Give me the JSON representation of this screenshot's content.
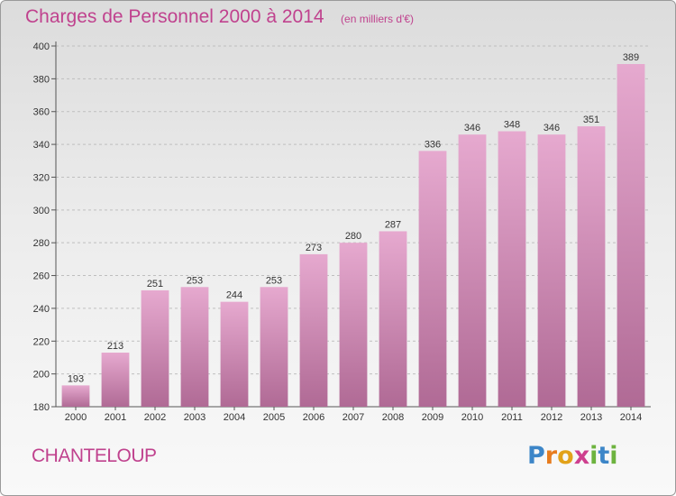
{
  "header": {
    "title": "Charges de Personnel 2000 à 2014",
    "subtitle": "(en milliers d'€)"
  },
  "footer": {
    "place": "CHANTELOUP",
    "logo_letters": [
      "P",
      "r",
      "o",
      "x",
      "i",
      "t",
      "i"
    ]
  },
  "colors": {
    "bar_top": "#e6a9cf",
    "bar_bottom": "#b06a95",
    "title": "#c0428e",
    "grid": "#bfbfbf"
  },
  "chart_data": {
    "type": "bar",
    "title": "Charges de Personnel 2000 à 2014",
    "subtitle": "(en milliers d'€)",
    "xlabel": "",
    "ylabel": "",
    "categories": [
      "2000",
      "2001",
      "2002",
      "2003",
      "2004",
      "2005",
      "2006",
      "2007",
      "2008",
      "2009",
      "2010",
      "2011",
      "2012",
      "2013",
      "2014"
    ],
    "values": [
      193,
      213,
      251,
      253,
      244,
      253,
      273,
      280,
      287,
      336,
      346,
      348,
      346,
      351,
      389
    ],
    "ylim": [
      180,
      400
    ],
    "yticks": [
      180,
      200,
      220,
      240,
      260,
      280,
      300,
      320,
      340,
      360,
      380,
      400
    ],
    "grid": true,
    "data_labels": true
  }
}
